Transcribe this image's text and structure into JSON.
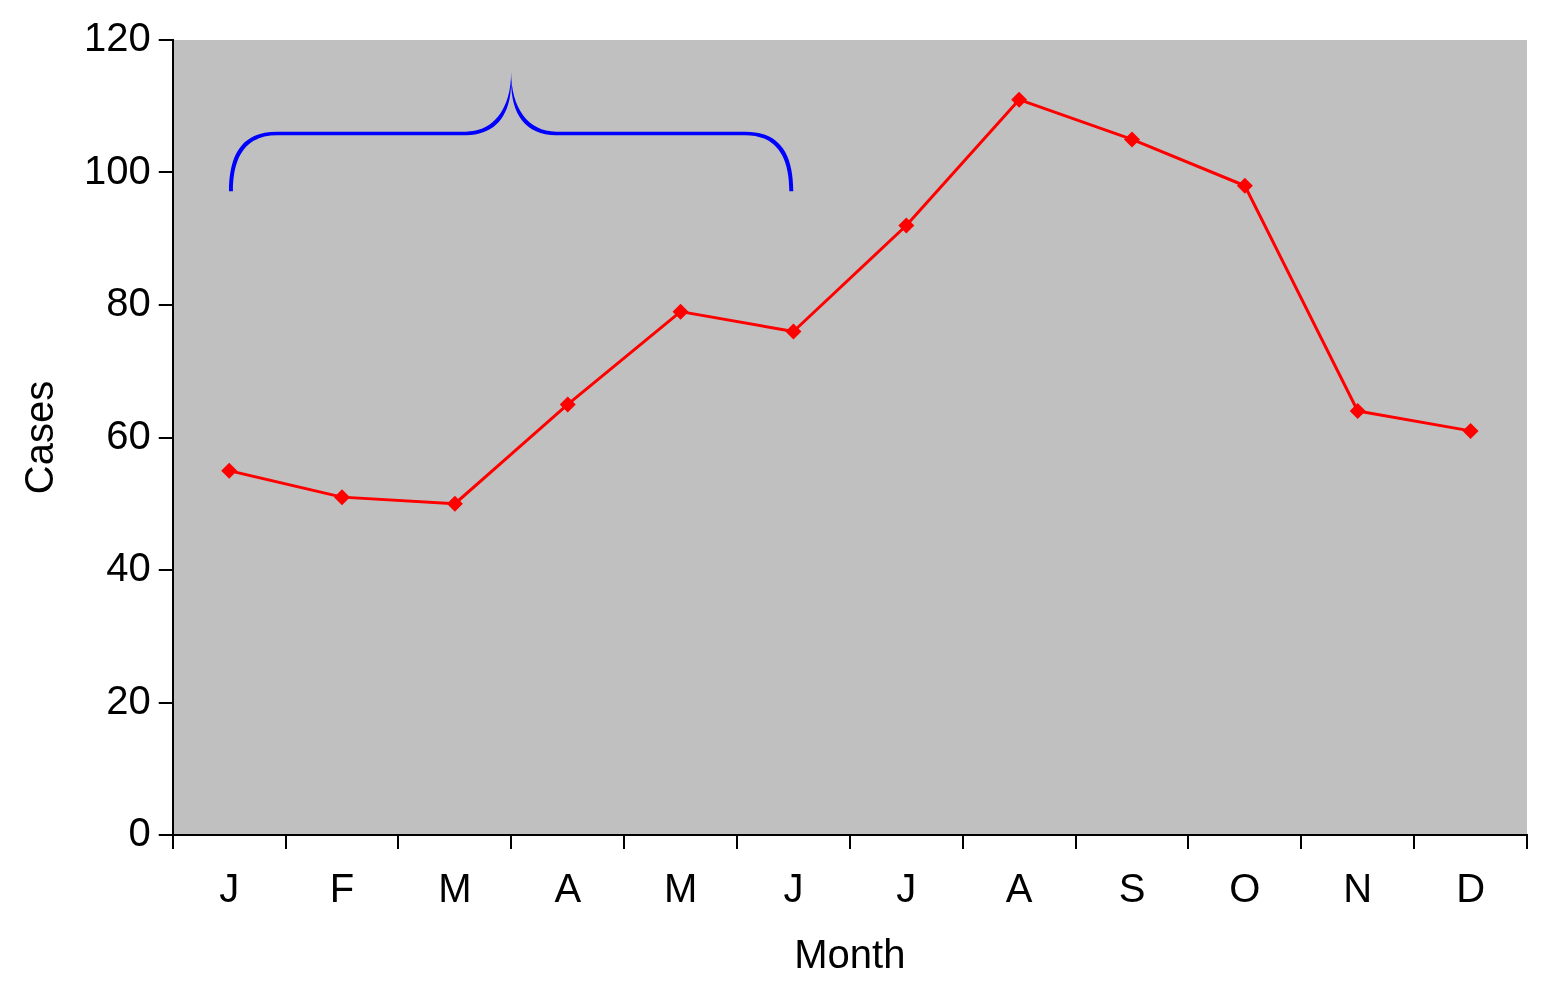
{
  "chart_data": {
    "type": "line",
    "xlabel": "Month",
    "ylabel": "Cases",
    "categories": [
      "J",
      "F",
      "M",
      "A",
      "M",
      "J",
      "J",
      "A",
      "S",
      "O",
      "N",
      "D"
    ],
    "series": [
      {
        "color": "#ff0000",
        "values": [
          55,
          51,
          50,
          65,
          79,
          76,
          92,
          111,
          105,
          98,
          64,
          61
        ]
      }
    ],
    "ylim": [
      0,
      120
    ],
    "yticks": [
      0,
      20,
      40,
      60,
      80,
      100,
      120
    ],
    "grid": false,
    "legend": false,
    "marker": "diamond",
    "line_style": "solid"
  }
}
